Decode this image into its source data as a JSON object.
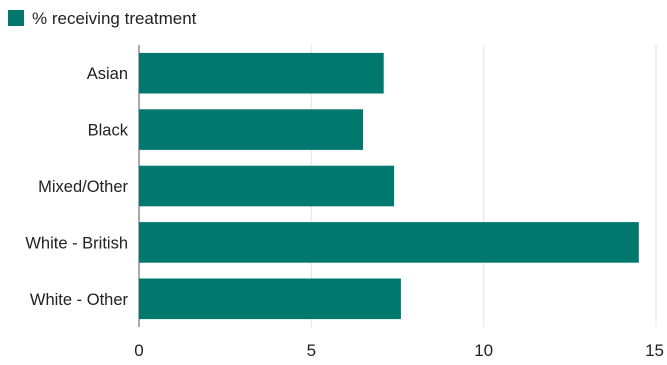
{
  "chart_data": {
    "type": "bar",
    "orientation": "horizontal",
    "categories": [
      "Asian",
      "Black",
      "Mixed/Other",
      "White - British",
      "White - Other"
    ],
    "series": [
      {
        "name": "% receiving treatment",
        "values": [
          7.1,
          6.5,
          7.4,
          14.5,
          7.6
        ],
        "color": "#00786e"
      }
    ],
    "xlim": [
      0,
      15
    ],
    "xticks": [
      0,
      5,
      10,
      15
    ],
    "xlabel": "",
    "ylabel": "",
    "grid": true,
    "legend_position": "top-left"
  }
}
